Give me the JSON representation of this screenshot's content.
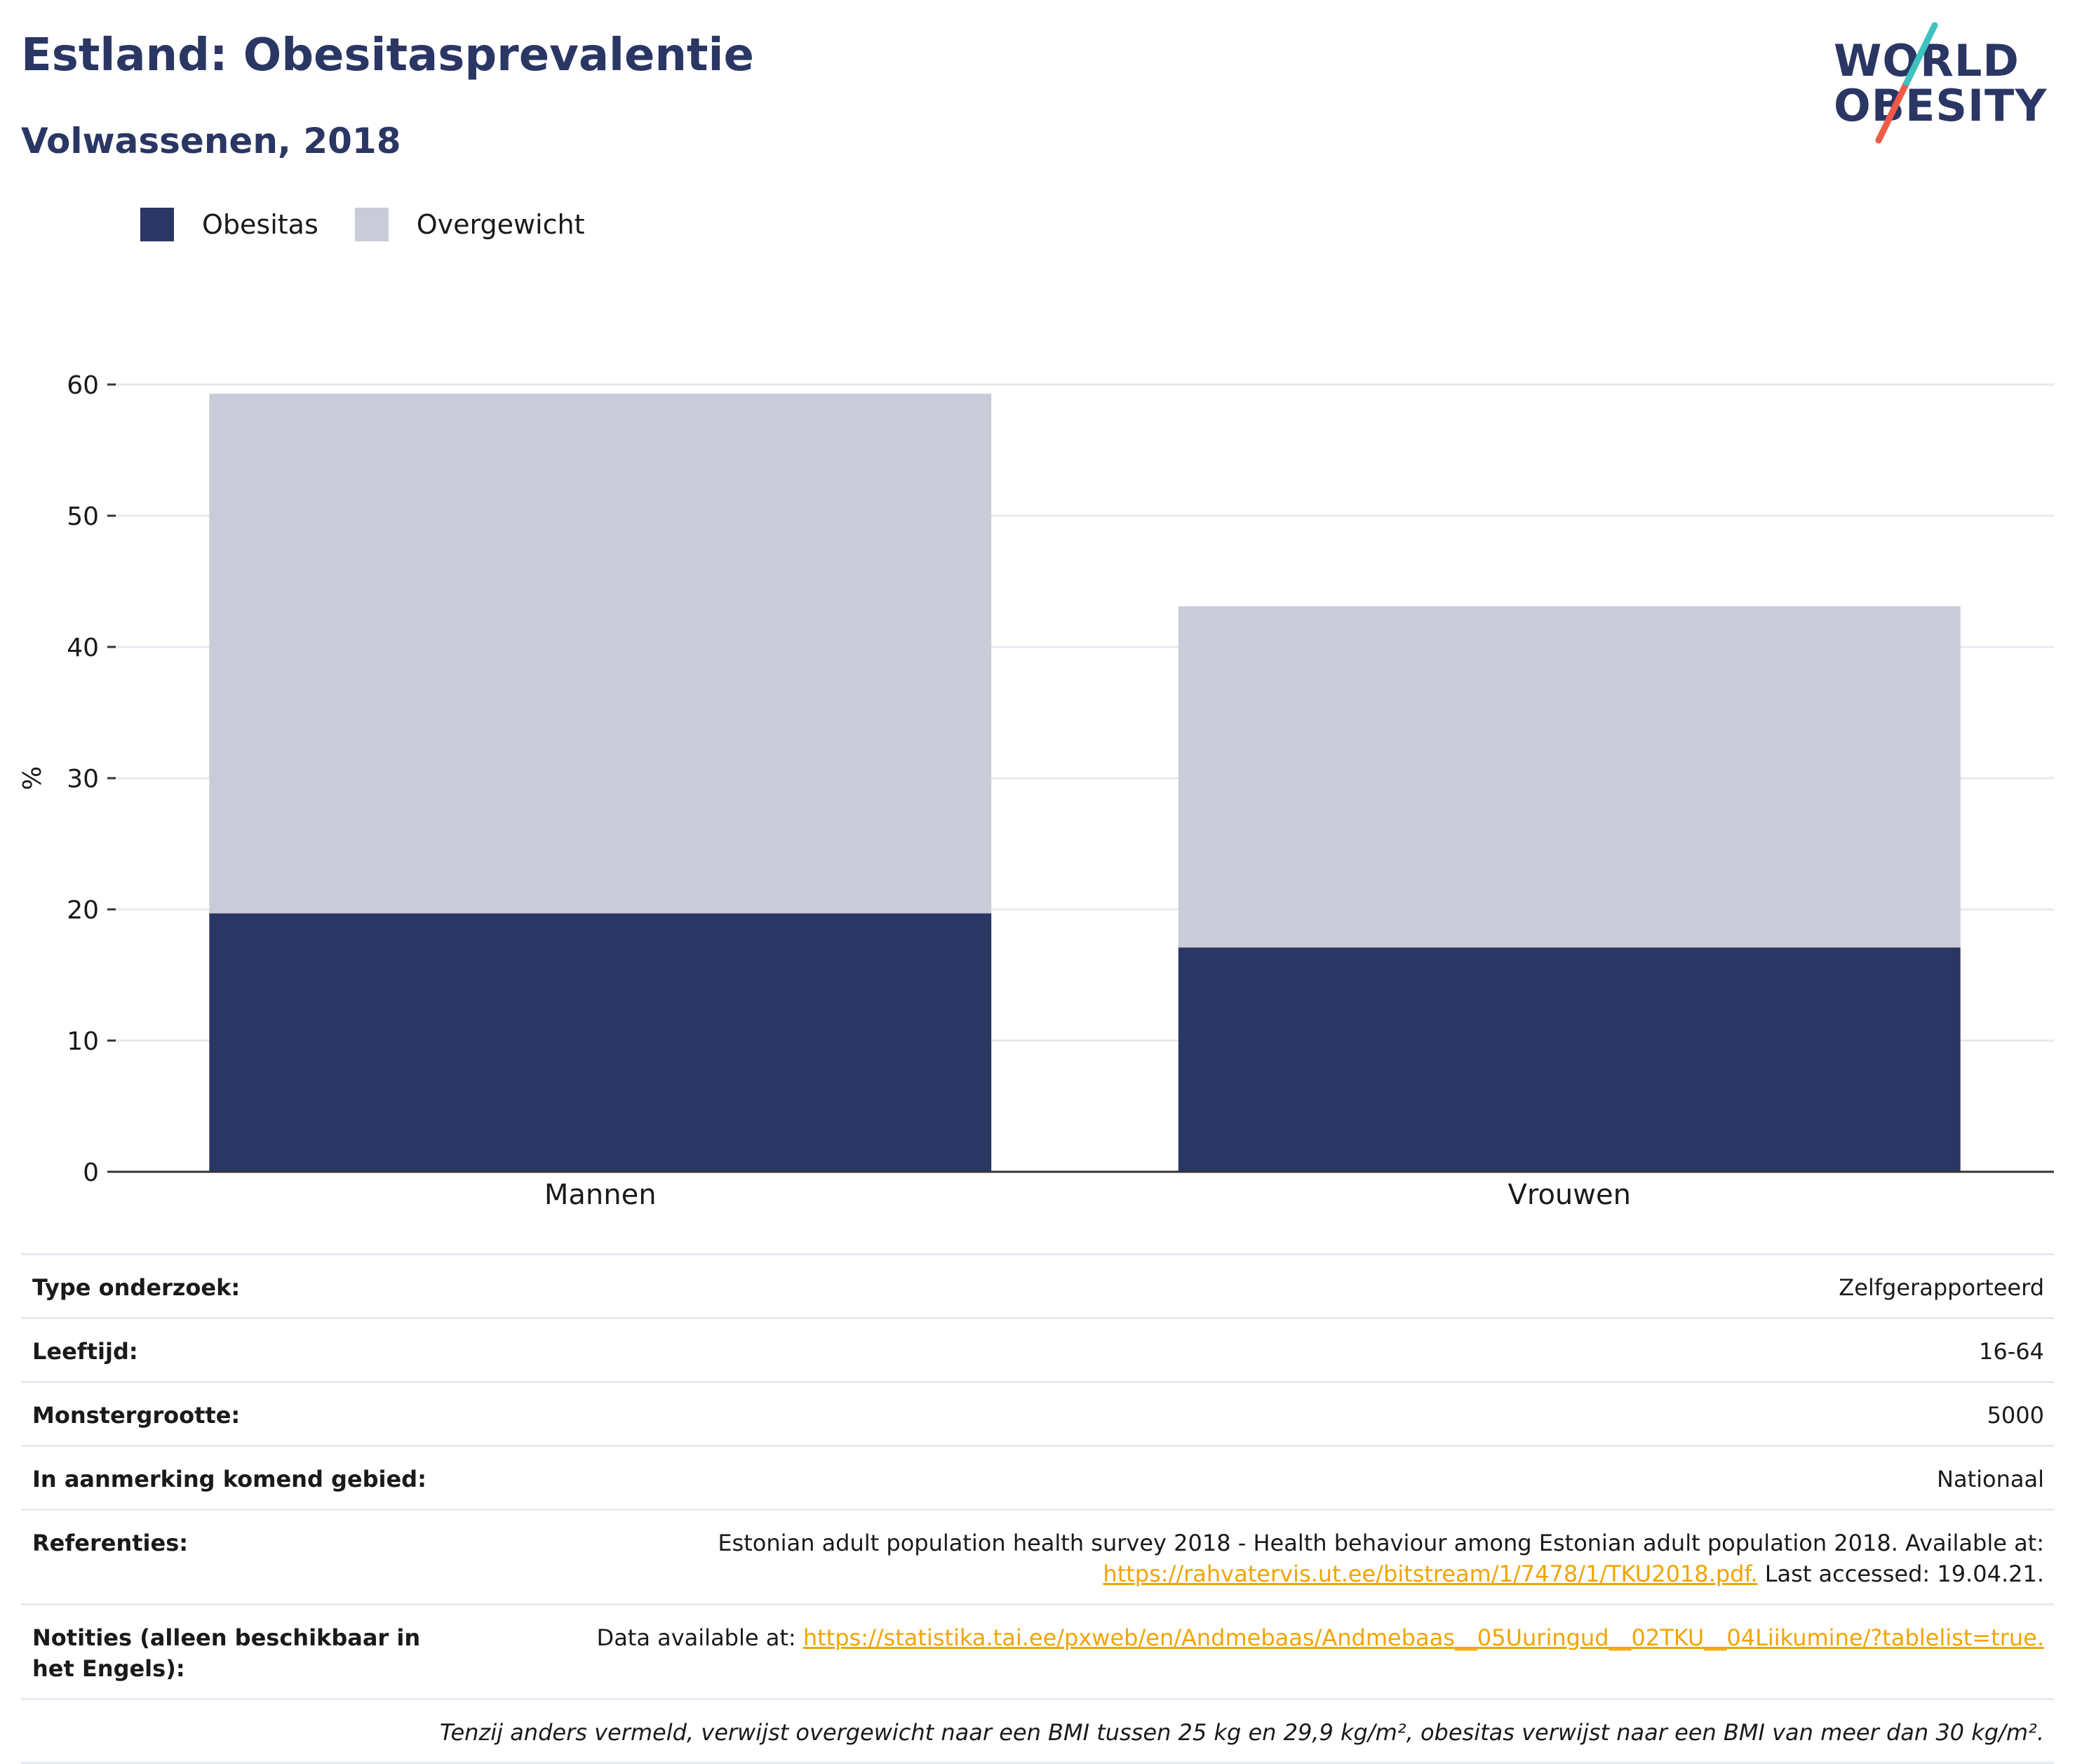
{
  "header": {
    "title": "Estland: Obesitasprevalentie",
    "subtitle": "Volwassenen, 2018"
  },
  "logo": {
    "line1": "WORLD",
    "line2": "OBESITY",
    "colors": {
      "text": "#2a3663",
      "slash_top": "#3fc1c0",
      "slash_bottom": "#f05a4a"
    }
  },
  "legend": [
    {
      "label": "Obesitas",
      "color": "#2a3663"
    },
    {
      "label": "Overgewicht",
      "color": "#c9ccd8"
    }
  ],
  "chart_data": {
    "type": "bar",
    "stacked": true,
    "categories": [
      "Mannen",
      "Vrouwen"
    ],
    "series": [
      {
        "name": "Obesitas",
        "values": [
          19.7,
          17.1
        ],
        "color": "#2a3663"
      },
      {
        "name": "Overgewicht",
        "values": [
          39.6,
          26.0
        ],
        "color": "#c9ccd8"
      }
    ],
    "ylabel": "%",
    "ylim": [
      0,
      60
    ],
    "yticks": [
      "0",
      "10",
      "20",
      "30",
      "40",
      "50",
      "60"
    ],
    "grid": true,
    "legend_position": "top-left"
  },
  "info": {
    "survey_type": {
      "label": "Type onderzoek:",
      "value": "Zelfgerapporteerd"
    },
    "age": {
      "label": "Leeftijd:",
      "value": "16-64"
    },
    "sample_size": {
      "label": "Monstergrootte:",
      "value": "5000"
    },
    "area": {
      "label": "In aanmerking komend gebied:",
      "value": "Nationaal"
    },
    "references": {
      "label": "Referenties:",
      "text": "Estonian adult population health survey 2018 - Health behaviour among Estonian adult population 2018. Available at:",
      "link": "https://rahvatervis.ut.ee/bitstream/1/7478/1/TKU2018.pdf.",
      "suffix": " Last accessed: 19.04.21."
    },
    "notes": {
      "label": "Notities (alleen beschikbaar in het Engels):",
      "text": "Data available at: ",
      "link": "https://statistika.tai.ee/pxweb/en/Andmebaas/Andmebaas__05Uuringud__02TKU__04Liikumine/?tablelist=true."
    },
    "footnote": "Tenzij anders vermeld, verwijst overgewicht naar een BMI tussen 25 kg en 29,9 kg/m², obesitas verwijst naar een BMI van meer dan 30 kg/m²."
  }
}
